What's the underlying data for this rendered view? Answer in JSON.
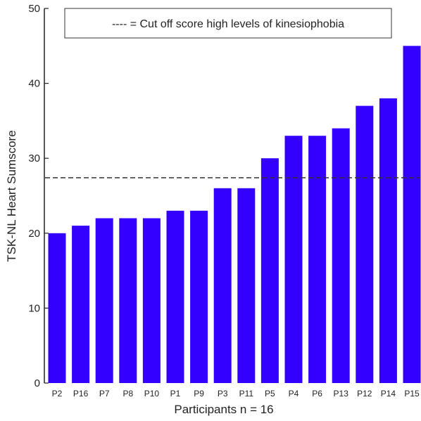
{
  "chart_data": {
    "type": "bar",
    "categories": [
      "P2",
      "P16",
      "P7",
      "P8",
      "P10",
      "P1",
      "P9",
      "P3",
      "P11",
      "P5",
      "P4",
      "P6",
      "P13",
      "P12",
      "P14",
      "P15"
    ],
    "values": [
      20,
      21,
      22,
      22,
      22,
      23,
      23,
      26,
      26,
      30,
      33,
      33,
      34,
      37,
      38,
      45
    ],
    "xlabel": "Participants n = 16",
    "ylabel": "TSK-NL Heart Sumscore",
    "ylim": [
      0,
      50
    ],
    "yticks": [
      0,
      10,
      20,
      30,
      40,
      50
    ],
    "grid": false,
    "bar_color": "#3300ff",
    "reference_line": {
      "y": 27.4,
      "style": "dashed",
      "color": "#333333"
    },
    "legend": {
      "text": "---- = Cut off score high levels of kinesiophobia",
      "placement": "top"
    }
  }
}
